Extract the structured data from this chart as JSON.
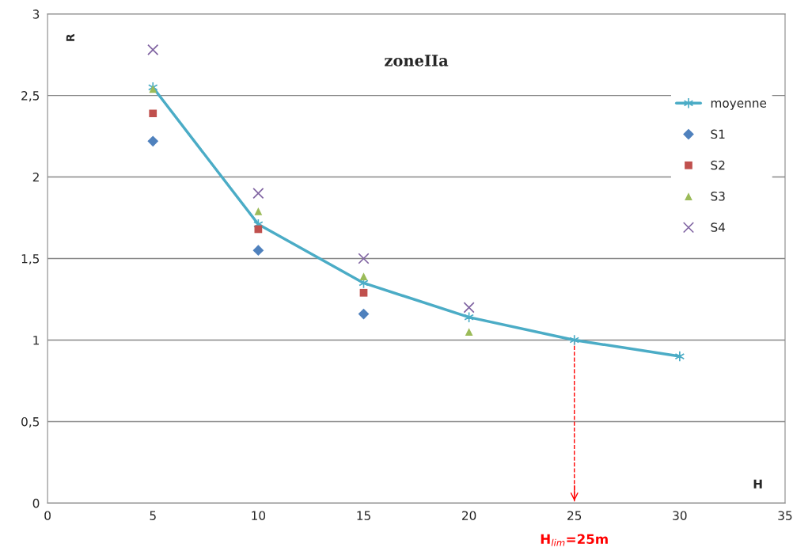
{
  "chart_data": {
    "type": "scatter",
    "title": "zoneIIa",
    "xlabel": "H",
    "ylabel": "R",
    "xlim": [
      0,
      35
    ],
    "xticks": [
      0,
      5,
      10,
      15,
      20,
      25,
      30,
      35
    ],
    "ylim": [
      0,
      3
    ],
    "yticks": [
      0,
      {
        "value": 0.5,
        "label": "0,5"
      },
      1,
      {
        "value": 1.5,
        "label": "1,5"
      },
      2,
      {
        "value": 2.5,
        "label": "2,5"
      },
      3
    ],
    "grid": "y",
    "legend": "top right",
    "series": [
      {
        "name": "moyenne",
        "type": "line",
        "color": "#4bacc6",
        "marker": "cross",
        "x": [
          5,
          10,
          15,
          20,
          25,
          30
        ],
        "values": [
          2.55,
          1.71,
          1.35,
          1.14,
          1.0,
          0.9
        ]
      },
      {
        "name": "S1",
        "color": "#4f81bd",
        "marker": "diamond",
        "x": [
          5,
          10,
          15
        ],
        "values": [
          2.22,
          1.55,
          1.16
        ]
      },
      {
        "name": "S2",
        "color": "#c0504d",
        "marker": "square",
        "x": [
          5,
          10,
          15
        ],
        "values": [
          2.39,
          1.68,
          1.29
        ]
      },
      {
        "name": "S3",
        "color": "#9bbb59",
        "marker": "triangle",
        "x": [
          5,
          10,
          15,
          20
        ],
        "values": [
          2.54,
          1.79,
          1.39,
          1.05
        ]
      },
      {
        "name": "S4",
        "color": "#8064a2",
        "marker": "cross",
        "x": [
          5,
          10,
          15,
          20
        ],
        "values": [
          2.78,
          1.9,
          1.5,
          1.2
        ]
      }
    ],
    "ref_lines": [
      {
        "axis": "x",
        "value": 25,
        "label": "H$_{lim}$=25m",
        "color": "#ff0000",
        "line_style": "dashed"
      }
    ]
  }
}
